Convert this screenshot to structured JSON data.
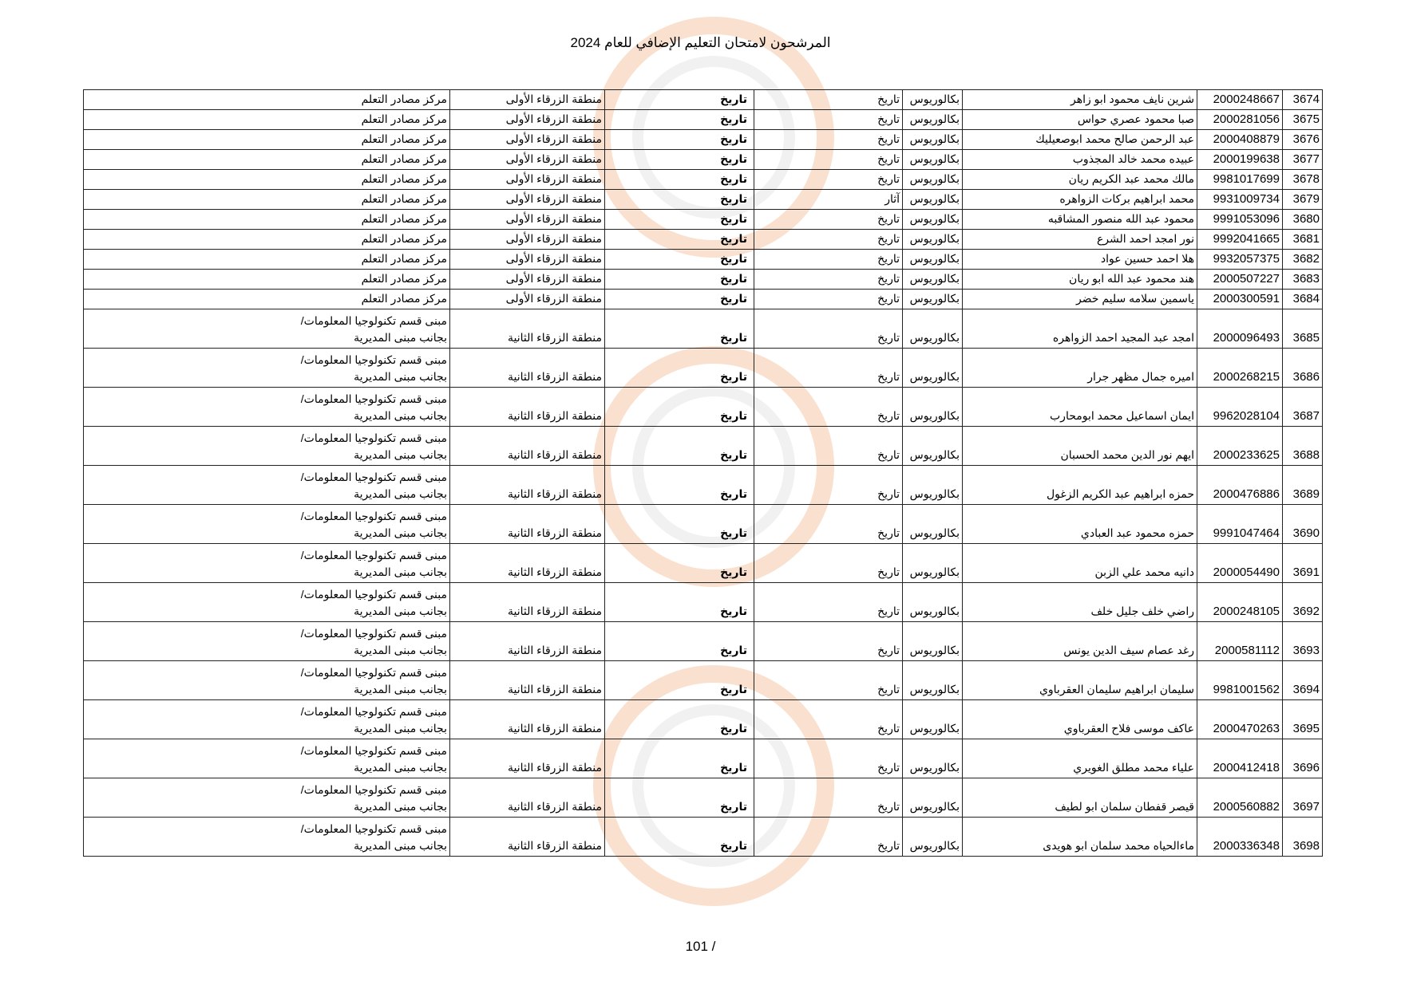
{
  "header": {
    "title": "المرشحون لامتحان التعليم الإضافي للعام 2024"
  },
  "footer": {
    "page_number": "101 /"
  },
  "watermark": {
    "ring_color": "#f6c9a8",
    "gray": "#e6e6e6"
  },
  "rows": [
    {
      "num": "3674",
      "id": "2000248667",
      "name": "شرين نايف محمود ابو زاهر",
      "degree": "بكالوريوس",
      "major": "تاريخ",
      "exam": "تاريخ",
      "region": "منطقة الزرقاء الأولى",
      "center": [
        "مركز مصادر التعلم"
      ]
    },
    {
      "num": "3675",
      "id": "2000281056",
      "name": "صبا محمود عصري حواس",
      "degree": "بكالوريوس",
      "major": "تاريخ",
      "exam": "تاريخ",
      "region": "منطقة الزرقاء الأولى",
      "center": [
        "مركز مصادر التعلم"
      ]
    },
    {
      "num": "3676",
      "id": "2000408879",
      "name": "عبد الرحمن صالح محمد ابوصعيليك",
      "degree": "بكالوريوس",
      "major": "تاريخ",
      "exam": "تاريخ",
      "region": "منطقة الزرقاء الأولى",
      "center": [
        "مركز مصادر التعلم"
      ]
    },
    {
      "num": "3677",
      "id": "2000199638",
      "name": "عبيده محمد خالد المجذوب",
      "degree": "بكالوريوس",
      "major": "تاريخ",
      "exam": "تاريخ",
      "region": "منطقة الزرقاء الأولى",
      "center": [
        "مركز مصادر التعلم"
      ]
    },
    {
      "num": "3678",
      "id": "9981017699",
      "name": "مالك محمد عبد الكريم ريان",
      "degree": "بكالوريوس",
      "major": "تاريخ",
      "exam": "تاريخ",
      "region": "منطقة الزرقاء الأولى",
      "center": [
        "مركز مصادر التعلم"
      ]
    },
    {
      "num": "3679",
      "id": "9931009734",
      "name": "محمد ابراهيم بركات الزواهره",
      "degree": "بكالوريوس",
      "major": "آثار",
      "exam": "تاريخ",
      "region": "منطقة الزرقاء الأولى",
      "center": [
        "مركز مصادر التعلم"
      ]
    },
    {
      "num": "3680",
      "id": "9991053096",
      "name": "محمود عبد الله منصور المشاقبه",
      "degree": "بكالوريوس",
      "major": "تاريخ",
      "exam": "تاريخ",
      "region": "منطقة الزرقاء الأولى",
      "center": [
        "مركز مصادر التعلم"
      ]
    },
    {
      "num": "3681",
      "id": "9992041665",
      "name": "نور امجد احمد الشرع",
      "degree": "بكالوريوس",
      "major": "تاريخ",
      "exam": "تاريخ",
      "region": "منطقة الزرقاء الأولى",
      "center": [
        "مركز مصادر التعلم"
      ]
    },
    {
      "num": "3682",
      "id": "9932057375",
      "name": "هلا احمد حسين عواد",
      "degree": "بكالوريوس",
      "major": "تاريخ",
      "exam": "تاريخ",
      "region": "منطقة الزرقاء الأولى",
      "center": [
        "مركز مصادر التعلم"
      ]
    },
    {
      "num": "3683",
      "id": "2000507227",
      "name": "هند محمود عبد الله ابو ريان",
      "degree": "بكالوريوس",
      "major": "تاريخ",
      "exam": "تاريخ",
      "region": "منطقة الزرقاء الأولى",
      "center": [
        "مركز مصادر التعلم"
      ]
    },
    {
      "num": "3684",
      "id": "2000300591",
      "name": "ياسمين سلامه سليم خضر",
      "degree": "بكالوريوس",
      "major": "تاريخ",
      "exam": "تاريخ",
      "region": "منطقة الزرقاء الأولى",
      "center": [
        "مركز مصادر التعلم"
      ]
    },
    {
      "num": "3685",
      "id": "2000096493",
      "name": "امجد عبد المجيد احمد الزواهره",
      "degree": "بكالوريوس",
      "major": "تاريخ",
      "exam": "تاريخ",
      "region": "منطقة الزرقاء الثانية",
      "center": [
        "مبنى قسم تكنولوجيا المعلومات/",
        "بجانب مبنى المديرية"
      ]
    },
    {
      "num": "3686",
      "id": "2000268215",
      "name": "اميره جمال مظهر جرار",
      "degree": "بكالوريوس",
      "major": "تاريخ",
      "exam": "تاريخ",
      "region": "منطقة الزرقاء الثانية",
      "center": [
        "مبنى قسم تكنولوجيا المعلومات/",
        "بجانب مبنى المديرية"
      ]
    },
    {
      "num": "3687",
      "id": "9962028104",
      "name": "ايمان اسماعيل محمد ابومحارب",
      "degree": "بكالوريوس",
      "major": "تاريخ",
      "exam": "تاريخ",
      "region": "منطقة الزرقاء الثانية",
      "center": [
        "مبنى قسم تكنولوجيا المعلومات/",
        "بجانب مبنى المديرية"
      ]
    },
    {
      "num": "3688",
      "id": "2000233625",
      "name": "ايهم نور الدين محمد الحسبان",
      "degree": "بكالوريوس",
      "major": "تاريخ",
      "exam": "تاريخ",
      "region": "منطقة الزرقاء الثانية",
      "center": [
        "مبنى قسم تكنولوجيا المعلومات/",
        "بجانب مبنى المديرية"
      ]
    },
    {
      "num": "3689",
      "id": "2000476886",
      "name": "حمزه ابراهيم عبد الكريم الزغول",
      "degree": "بكالوريوس",
      "major": "تاريخ",
      "exam": "تاريخ",
      "region": "منطقة الزرقاء الثانية",
      "center": [
        "مبنى قسم تكنولوجيا المعلومات/",
        "بجانب مبنى المديرية"
      ]
    },
    {
      "num": "3690",
      "id": "9991047464",
      "name": "حمزه محمود عبد العبادي",
      "degree": "بكالوريوس",
      "major": "تاريخ",
      "exam": "تاريخ",
      "region": "منطقة الزرقاء الثانية",
      "center": [
        "مبنى قسم تكنولوجيا المعلومات/",
        "بجانب مبنى المديرية"
      ]
    },
    {
      "num": "3691",
      "id": "2000054490",
      "name": "دانيه محمد علي الزبن",
      "degree": "بكالوريوس",
      "major": "تاريخ",
      "exam": "تاريخ",
      "region": "منطقة الزرقاء الثانية",
      "center": [
        "مبنى قسم تكنولوجيا المعلومات/",
        "بجانب مبنى المديرية"
      ]
    },
    {
      "num": "3692",
      "id": "2000248105",
      "name": "راضي خلف جليل خلف",
      "degree": "بكالوريوس",
      "major": "تاريخ",
      "exam": "تاريخ",
      "region": "منطقة الزرقاء الثانية",
      "center": [
        "مبنى قسم تكنولوجيا المعلومات/",
        "بجانب مبنى المديرية"
      ]
    },
    {
      "num": "3693",
      "id": "2000581112",
      "name": "رغد عصام سيف الدين يونس",
      "degree": "بكالوريوس",
      "major": "تاريخ",
      "exam": "تاريخ",
      "region": "منطقة الزرقاء الثانية",
      "center": [
        "مبنى قسم تكنولوجيا المعلومات/",
        "بجانب مبنى المديرية"
      ]
    },
    {
      "num": "3694",
      "id": "9981001562",
      "name": "سليمان ابراهيم سليمان العقرباوي",
      "degree": "بكالوريوس",
      "major": "تاريخ",
      "exam": "تاريخ",
      "region": "منطقة الزرقاء الثانية",
      "center": [
        "مبنى قسم تكنولوجيا المعلومات/",
        "بجانب مبنى المديرية"
      ]
    },
    {
      "num": "3695",
      "id": "2000470263",
      "name": "عاكف موسى فلاح العقرباوي",
      "degree": "بكالوريوس",
      "major": "تاريخ",
      "exam": "تاريخ",
      "region": "منطقة الزرقاء الثانية",
      "center": [
        "مبنى قسم تكنولوجيا المعلومات/",
        "بجانب مبنى المديرية"
      ]
    },
    {
      "num": "3696",
      "id": "2000412418",
      "name": "علياء محمد مطلق الغويري",
      "degree": "بكالوريوس",
      "major": "تاريخ",
      "exam": "تاريخ",
      "region": "منطقة الزرقاء الثانية",
      "center": [
        "مبنى قسم تكنولوجيا المعلومات/",
        "بجانب مبنى المديرية"
      ]
    },
    {
      "num": "3697",
      "id": "2000560882",
      "name": "قيصر قفطان سلمان ابو لطيف",
      "degree": "بكالوريوس",
      "major": "تاريخ",
      "exam": "تاريخ",
      "region": "منطقة الزرقاء الثانية",
      "center": [
        "مبنى قسم تكنولوجيا المعلومات/",
        "بجانب مبنى المديرية"
      ]
    },
    {
      "num": "3698",
      "id": "2000336348",
      "name": "ماءالحياه محمد سلمان ابو هويدى",
      "degree": "بكالوريوس",
      "major": "تاريخ",
      "exam": "تاريخ",
      "region": "منطقة الزرقاء الثانية",
      "center": [
        "مبنى قسم تكنولوجيا المعلومات/",
        "بجانب مبنى المديرية"
      ]
    }
  ]
}
